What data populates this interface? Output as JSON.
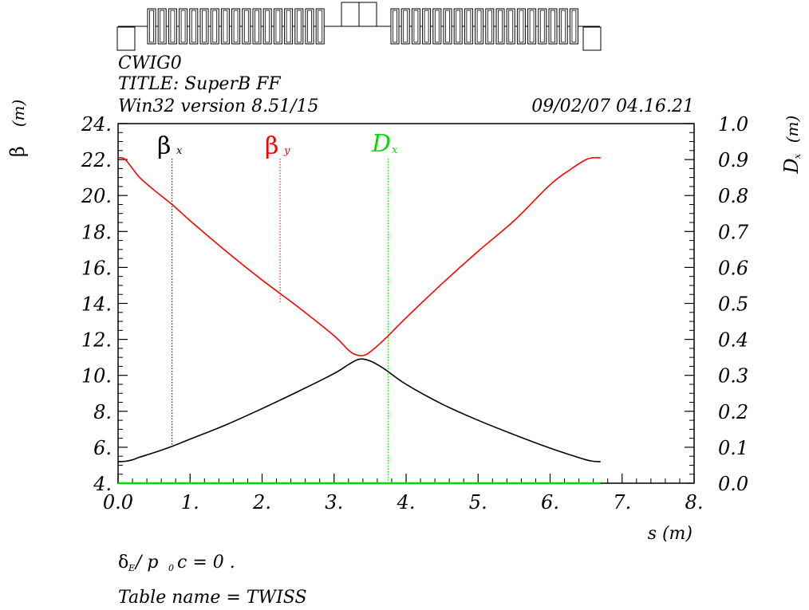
{
  "header": {
    "line1": "CWIG0",
    "line2": "TITLE: SuperB FF",
    "line3": "Win32 version 8.51/15",
    "datetime": "09/02/07  04.16.21"
  },
  "footer": {
    "delta_label": "δ",
    "delta_sub": "E",
    "delta_rest": "/ p",
    "delta_sub2": "0",
    "delta_tail": "c   =   0 .",
    "table_name": "Table name = TWISS"
  },
  "legend": {
    "betax_main": "β",
    "betax_sub": "x",
    "betay_main": "β",
    "betay_sub": "y",
    "dx_main": "D",
    "dx_sub": "x"
  },
  "colors": {
    "betax": "#000000",
    "betay": "#ff0000",
    "dx": "#00dd00"
  },
  "chart_data": {
    "type": "line",
    "xlabel": "s (m)",
    "ylabel_left_main": "β",
    "ylabel_left_unit": "(m)",
    "ylabel_right_main": "D",
    "ylabel_right_sub": "x",
    "ylabel_right_unit": "(m)",
    "xlim": [
      0,
      8
    ],
    "ylim_left": [
      4,
      24
    ],
    "ylim_right": [
      0,
      1
    ],
    "x_ticks": [
      "0.0",
      "1.",
      "2.",
      "3.",
      "4.",
      "5.",
      "6.",
      "7.",
      "8."
    ],
    "y_left_ticks": [
      "4.",
      "6.",
      "8.",
      "10.",
      "12.",
      "14.",
      "16.",
      "18.",
      "20.",
      "22.",
      "24."
    ],
    "y_right_ticks": [
      "0.0",
      "0.1",
      "0.2",
      "0.3",
      "0.4",
      "0.5",
      "0.6",
      "0.7",
      "0.8",
      "0.9",
      "1.0"
    ],
    "legend_marker_s": {
      "betax": 0.75,
      "betay": 2.25,
      "dx": 3.75
    },
    "series": [
      {
        "name": "βx",
        "axis": "left",
        "x": [
          0.0,
          0.1,
          0.2,
          0.3,
          0.5,
          0.75,
          1.0,
          1.5,
          2.0,
          2.5,
          3.0,
          3.2,
          3.35,
          3.5,
          3.7,
          4.0,
          4.5,
          5.0,
          5.5,
          6.0,
          6.3,
          6.5,
          6.6,
          6.7
        ],
        "values": [
          5.2,
          5.22,
          5.3,
          5.45,
          5.7,
          6.05,
          6.45,
          7.25,
          8.15,
          9.1,
          10.1,
          10.6,
          10.9,
          10.8,
          10.35,
          9.5,
          8.4,
          7.5,
          6.7,
          5.95,
          5.55,
          5.3,
          5.22,
          5.2
        ]
      },
      {
        "name": "βy",
        "axis": "left",
        "x": [
          0.0,
          0.05,
          0.1,
          0.2,
          0.3,
          0.5,
          0.75,
          1.0,
          1.5,
          2.0,
          2.5,
          3.0,
          3.2,
          3.3,
          3.4,
          3.5,
          3.7,
          4.0,
          4.5,
          5.0,
          5.5,
          6.0,
          6.3,
          6.5,
          6.6,
          6.7
        ],
        "values": [
          22.1,
          22.1,
          22.0,
          21.5,
          21.0,
          20.3,
          19.5,
          18.6,
          16.9,
          15.3,
          13.8,
          12.2,
          11.4,
          11.15,
          11.1,
          11.3,
          12.0,
          13.2,
          15.1,
          16.9,
          18.6,
          20.6,
          21.5,
          22.0,
          22.1,
          22.1
        ]
      },
      {
        "name": "Dx",
        "axis": "right",
        "x": [
          0.0,
          6.7
        ],
        "values": [
          0.0,
          0.0
        ]
      }
    ]
  }
}
